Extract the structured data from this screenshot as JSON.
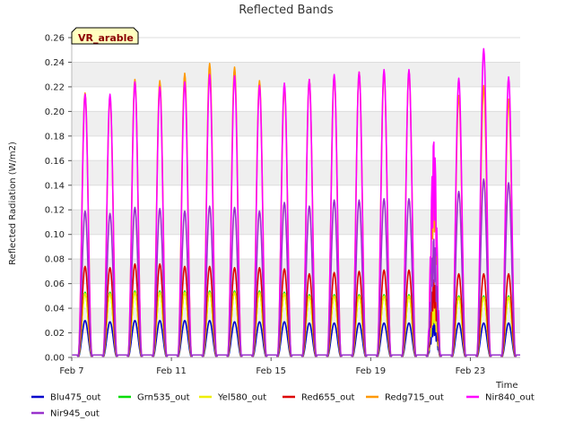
{
  "chart_data": {
    "type": "line",
    "title": "Reflected Bands",
    "badge": "VR_arable",
    "xlabel": "Time",
    "ylabel": "Reflected Radiation (W/m2)",
    "ylim": [
      0,
      0.26
    ],
    "yticks": [
      0.0,
      0.02,
      0.04,
      0.06,
      0.08,
      0.1,
      0.12,
      0.14,
      0.16,
      0.18,
      0.2,
      0.22,
      0.24,
      0.26
    ],
    "xlim": [
      "Feb 7",
      "Feb 25"
    ],
    "xticks": [
      "Feb 7",
      "Feb 11",
      "Feb 15",
      "Feb 19",
      "Feb 23"
    ],
    "day_labels": [
      "Feb 7",
      "Feb 8",
      "Feb 9",
      "Feb 10",
      "Feb 11",
      "Feb 12",
      "Feb 13",
      "Feb 14",
      "Feb 15",
      "Feb 16",
      "Feb 17",
      "Feb 18",
      "Feb 19",
      "Feb 20",
      "Feb 21",
      "Feb 22",
      "Feb 23",
      "Feb 24"
    ],
    "grid": true,
    "legend_position": "bottom",
    "series": [
      {
        "name": "Blu475_out",
        "color": "#0000cc",
        "daily_peaks": [
          0.03,
          0.029,
          0.03,
          0.03,
          0.03,
          0.03,
          0.029,
          0.029,
          0.029,
          0.028,
          0.028,
          0.028,
          0.028,
          0.028,
          0.028,
          0.028,
          0.028,
          0.028
        ]
      },
      {
        "name": "Grn535_out",
        "color": "#00dd00",
        "daily_peaks": [
          0.053,
          0.053,
          0.054,
          0.054,
          0.054,
          0.054,
          0.054,
          0.054,
          0.053,
          0.051,
          0.051,
          0.051,
          0.051,
          0.051,
          0.045,
          0.05,
          0.05,
          0.05
        ]
      },
      {
        "name": "Yel580_out",
        "color": "#eeee00",
        "daily_peaks": [
          0.052,
          0.052,
          0.053,
          0.053,
          0.053,
          0.053,
          0.053,
          0.053,
          0.052,
          0.05,
          0.05,
          0.05,
          0.05,
          0.05,
          0.044,
          0.049,
          0.049,
          0.049
        ]
      },
      {
        "name": "Red655_out",
        "color": "#dd0000",
        "daily_peaks": [
          0.074,
          0.073,
          0.076,
          0.076,
          0.074,
          0.074,
          0.073,
          0.073,
          0.072,
          0.068,
          0.069,
          0.07,
          0.071,
          0.071,
          0.063,
          0.068,
          0.068,
          0.068
        ]
      },
      {
        "name": "Redg715_out",
        "color": "#ff9900",
        "daily_peaks": [
          0.215,
          0.212,
          0.226,
          0.225,
          0.231,
          0.239,
          0.236,
          0.225,
          0.22,
          0.226,
          0.229,
          0.232,
          0.232,
          0.233,
          0.16,
          0.213,
          0.221,
          0.21
        ]
      },
      {
        "name": "Nir840_out",
        "color": "#ff00ff",
        "daily_peaks": [
          0.214,
          0.214,
          0.224,
          0.22,
          0.224,
          0.23,
          0.229,
          0.221,
          0.223,
          0.226,
          0.23,
          0.232,
          0.234,
          0.234,
          0.175,
          0.227,
          0.251,
          0.228
        ]
      },
      {
        "name": "Nir945_out",
        "color": "#9933cc",
        "daily_peaks": [
          0.119,
          0.117,
          0.122,
          0.121,
          0.119,
          0.123,
          0.122,
          0.119,
          0.126,
          0.123,
          0.128,
          0.128,
          0.129,
          0.129,
          0.096,
          0.135,
          0.145,
          0.142
        ]
      }
    ]
  }
}
